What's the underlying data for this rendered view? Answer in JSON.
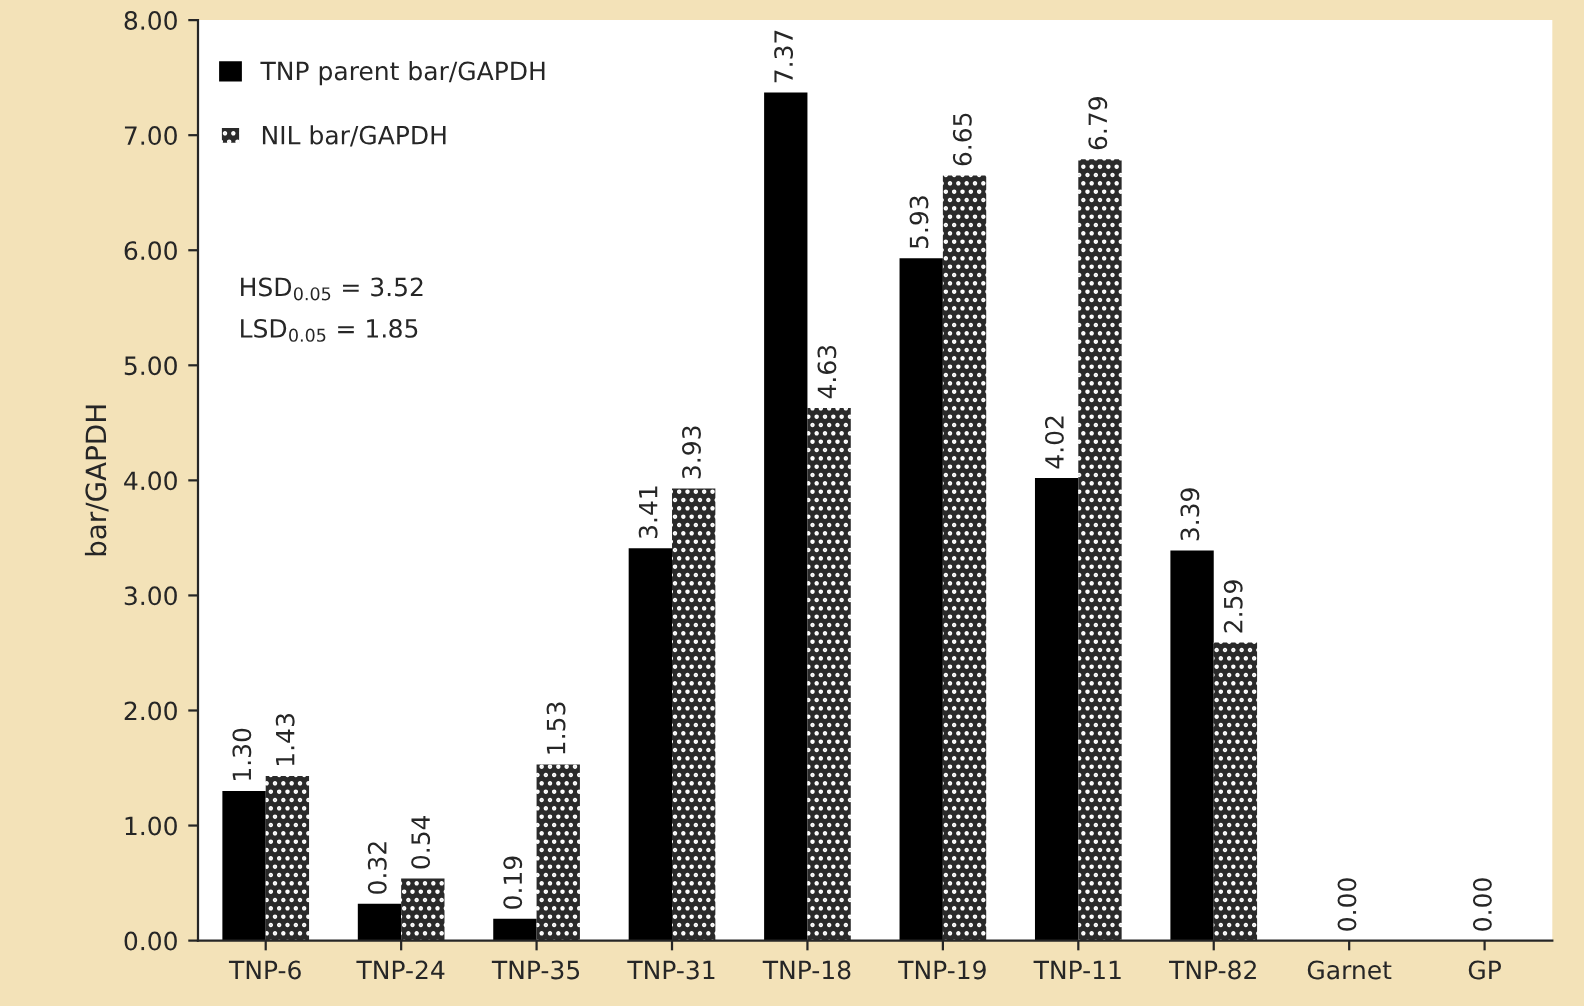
{
  "chart_data": {
    "type": "bar",
    "ylabel": "bar/GAPDH",
    "categories": [
      "TNP-6",
      "TNP-24",
      "TNP-35",
      "TNP-31",
      "TNP-18",
      "TNP-19",
      "TNP-11",
      "TNP-82",
      "Garnet",
      "GP"
    ],
    "series": [
      {
        "name": "TNP parent bar/GAPDH",
        "color": "#000000",
        "values": [
          1.3,
          0.32,
          0.19,
          3.41,
          7.37,
          5.93,
          4.02,
          3.39,
          0.0,
          0.0
        ],
        "value_labels": [
          "1.30",
          "0.32",
          "0.19",
          "3.41",
          "7.37",
          "5.93",
          "4.02",
          "3.39",
          "0.00",
          "0.00"
        ]
      },
      {
        "name": "NIL bar/GAPDH",
        "color": "#2a2a2a",
        "values": [
          1.43,
          0.54,
          1.53,
          3.93,
          4.63,
          6.65,
          6.79,
          2.59,
          null,
          null
        ],
        "value_labels": [
          "1.43",
          "0.54",
          "1.53",
          "3.93",
          "4.63",
          "6.65",
          "6.79",
          "2.59",
          null,
          null
        ]
      }
    ],
    "ylim": [
      0,
      8
    ],
    "yticks": [
      {
        "value": 0,
        "label": "0.00"
      },
      {
        "value": 1,
        "label": "1.00"
      },
      {
        "value": 2,
        "label": "2.00"
      },
      {
        "value": 3,
        "label": "3.00"
      },
      {
        "value": 4,
        "label": "4.00"
      },
      {
        "value": 5,
        "label": "5.00"
      },
      {
        "value": 6,
        "label": "6.00"
      },
      {
        "value": 7,
        "label": "7.00"
      },
      {
        "value": 8,
        "label": "8.00"
      }
    ],
    "annotations": [
      "HSD$_{0.05}$ = 3.52",
      "LSD$_{0.05}$ = 1.85"
    ],
    "legend": "top left",
    "grid": false
  }
}
